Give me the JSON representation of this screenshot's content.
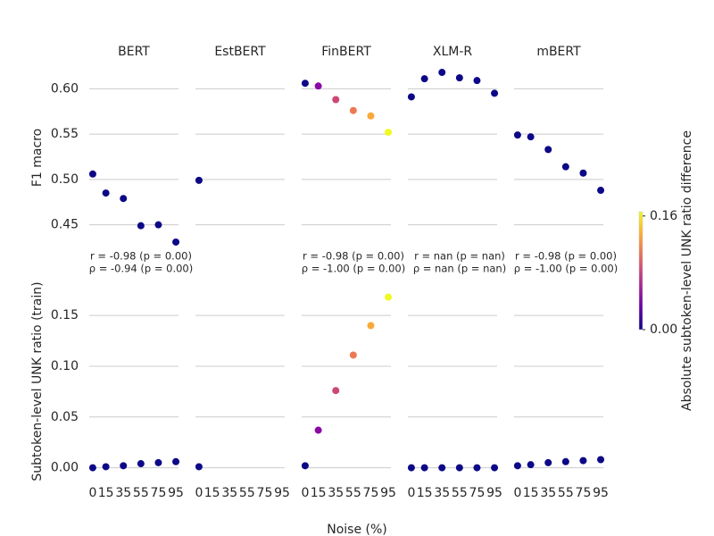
{
  "chart_data": [
    {
      "type": "scatter",
      "title": "BERT",
      "ylabel": "F1 macro",
      "x": [
        0,
        15,
        35,
        55,
        75,
        95
      ],
      "values": [
        0.506,
        0.485,
        0.479,
        0.449,
        0.45,
        0.431
      ],
      "colors": [
        "#0d0887",
        "#0d0887",
        "#0d0887",
        "#0d0887",
        "#0d0887",
        "#0d0887"
      ],
      "annotations": [
        "r = -0.98 (p = 0.00)",
        "ρ = -0.94 (p = 0.00)"
      ],
      "xlim": [
        -4,
        98
      ],
      "ylim": [
        0.427,
        0.621
      ],
      "yticks": [
        {
          "value": 0.45,
          "label": "0.45"
        },
        {
          "value": 0.5,
          "label": "0.50"
        },
        {
          "value": 0.55,
          "label": "0.55"
        },
        {
          "value": 0.6,
          "label": "0.60"
        }
      ]
    },
    {
      "type": "scatter",
      "title": "EstBERT",
      "x": [
        0
      ],
      "values": [
        0.499
      ],
      "colors": [
        "#0d0887"
      ],
      "xlim": [
        -4,
        98
      ],
      "ylim": [
        0.427,
        0.621
      ],
      "yticks": [
        0.45,
        0.5,
        0.55,
        0.6
      ]
    },
    {
      "type": "scatter",
      "title": "FinBERT",
      "x": [
        0,
        15,
        35,
        55,
        75,
        95
      ],
      "values": [
        0.606,
        0.603,
        0.588,
        0.576,
        0.57,
        0.552
      ],
      "colors": [
        "#0d0887",
        "#8a09a5",
        "#cc4778",
        "#ed7953",
        "#f9a93a",
        "#f0f921"
      ],
      "annotations": [
        "r = -0.98 (p = 0.00)",
        "ρ = -1.00 (p = 0.00)"
      ],
      "xlim": [
        -4,
        98
      ],
      "ylim": [
        0.427,
        0.621
      ],
      "yticks": [
        0.45,
        0.5,
        0.55,
        0.6
      ]
    },
    {
      "type": "scatter",
      "title": "XLM-R",
      "x": [
        0,
        15,
        35,
        55,
        75,
        95
      ],
      "values": [
        0.591,
        0.611,
        0.618,
        0.612,
        0.609,
        0.595
      ],
      "colors": [
        "#0d0887",
        "#0d0887",
        "#0d0887",
        "#0d0887",
        "#0d0887",
        "#0d0887"
      ],
      "annotations": [
        "r = nan (p = nan)",
        "ρ = nan (p = nan)"
      ],
      "xlim": [
        -4,
        98
      ],
      "ylim": [
        0.427,
        0.621
      ],
      "yticks": [
        0.45,
        0.5,
        0.55,
        0.6
      ]
    },
    {
      "type": "scatter",
      "title": "mBERT",
      "x": [
        0,
        15,
        35,
        55,
        75,
        95
      ],
      "values": [
        0.549,
        0.547,
        0.533,
        0.514,
        0.507,
        0.488
      ],
      "colors": [
        "#0d0887",
        "#0d0887",
        "#0d0887",
        "#0d0887",
        "#0d0887",
        "#0d0887"
      ],
      "annotations": [
        "r = -0.98 (p = 0.00)",
        "ρ = -1.00 (p = 0.00)"
      ],
      "xlim": [
        -4,
        98
      ],
      "ylim": [
        0.427,
        0.621
      ],
      "yticks": [
        0.45,
        0.5,
        0.55,
        0.6
      ]
    },
    {
      "type": "scatter",
      "ylabel": "Subtoken-level UNK ratio (train)",
      "xlabel": "Noise (%)",
      "x": [
        0,
        15,
        35,
        55,
        75,
        95
      ],
      "values": [
        0.0,
        0.001,
        0.002,
        0.004,
        0.005,
        0.006
      ],
      "colors": [
        "#0d0887",
        "#0d0887",
        "#0d0887",
        "#0d0887",
        "#0d0887",
        "#0d0887"
      ],
      "xlim": [
        -4,
        98
      ],
      "ylim": [
        -0.003,
        0.173
      ],
      "xticks": [
        0,
        15,
        35,
        55,
        75,
        95
      ],
      "yticks": [
        {
          "value": 0,
          "label": "0.00"
        },
        {
          "value": 0.05,
          "label": "0.05"
        },
        {
          "value": 0.1,
          "label": "0.10"
        },
        {
          "value": 0.15,
          "label": "0.15"
        }
      ]
    },
    {
      "type": "scatter",
      "x": [
        0
      ],
      "values": [
        0.001
      ],
      "colors": [
        "#0d0887"
      ],
      "xlim": [
        -4,
        98
      ],
      "ylim": [
        -0.003,
        0.173
      ],
      "xticks": [
        0,
        15,
        35,
        55,
        75,
        95
      ],
      "yticks": [
        0,
        0.05,
        0.1,
        0.15
      ]
    },
    {
      "type": "scatter",
      "x": [
        0,
        15,
        35,
        55,
        75,
        95
      ],
      "values": [
        0.002,
        0.037,
        0.076,
        0.111,
        0.14,
        0.168
      ],
      "colors": [
        "#0d0887",
        "#8a09a5",
        "#cc4778",
        "#ed7953",
        "#f9a93a",
        "#f0f921"
      ],
      "xlim": [
        -4,
        98
      ],
      "ylim": [
        -0.003,
        0.173
      ],
      "xticks": [
        0,
        15,
        35,
        55,
        75,
        95
      ],
      "yticks": [
        0,
        0.05,
        0.1,
        0.15
      ]
    },
    {
      "type": "scatter",
      "x": [
        0,
        15,
        35,
        55,
        75,
        95
      ],
      "values": [
        0.0,
        0.0,
        0.0,
        0.0,
        0.0,
        0.0
      ],
      "colors": [
        "#0d0887",
        "#0d0887",
        "#0d0887",
        "#0d0887",
        "#0d0887",
        "#0d0887"
      ],
      "xlim": [
        -4,
        98
      ],
      "ylim": [
        -0.003,
        0.173
      ],
      "xticks": [
        0,
        15,
        35,
        55,
        75,
        95
      ],
      "yticks": [
        0,
        0.05,
        0.1,
        0.15
      ]
    },
    {
      "type": "scatter",
      "x": [
        0,
        15,
        35,
        55,
        75,
        95
      ],
      "values": [
        0.002,
        0.003,
        0.005,
        0.006,
        0.007,
        0.008
      ],
      "colors": [
        "#0d0887",
        "#0d0887",
        "#0d0887",
        "#0d0887",
        "#0d0887",
        "#0d0887"
      ],
      "xlim": [
        -4,
        98
      ],
      "ylim": [
        -0.003,
        0.173
      ],
      "xticks": [
        0,
        15,
        35,
        55,
        75,
        95
      ],
      "yticks": [
        0,
        0.05,
        0.1,
        0.15
      ]
    },
    {
      "type": "colorbar",
      "label": "Absolute subtoken-level UNK ratio difference",
      "lim": [
        0,
        0.166
      ],
      "ticks": [
        {
          "value": 0,
          "label": "0.00"
        },
        {
          "value": 0.16,
          "label": "0.16"
        }
      ],
      "colors": [
        "#0d0887",
        "#6a00a8",
        "#b12a90",
        "#e16462",
        "#fca636",
        "#f0f921"
      ]
    }
  ]
}
